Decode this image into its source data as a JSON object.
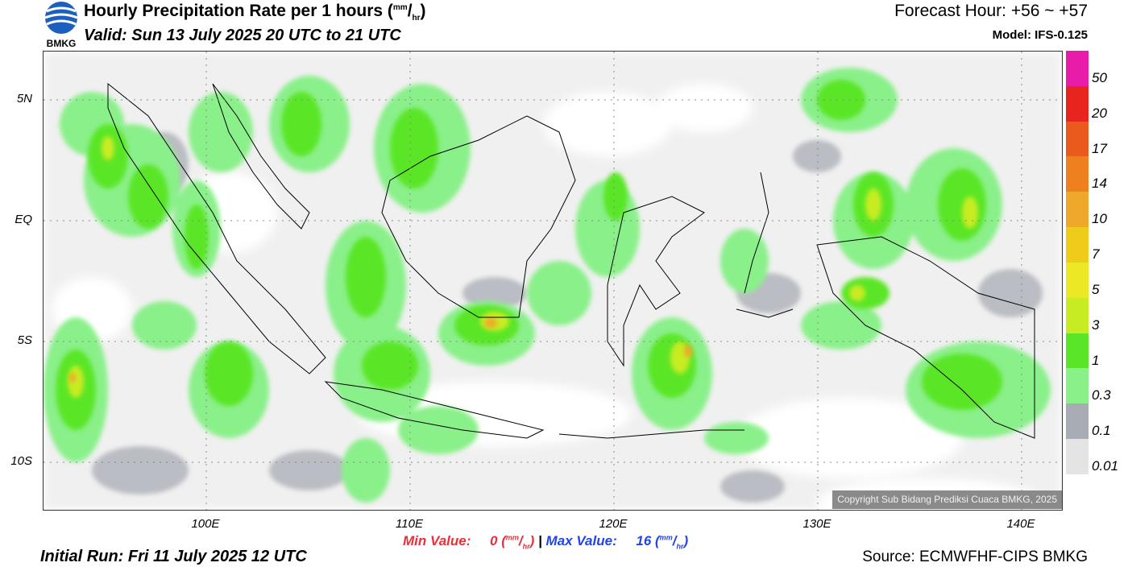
{
  "header": {
    "logo_text": "BMKG",
    "title_main": "Hourly Precipitation Rate per 1 hours (",
    "title_unit_top": "mm",
    "title_unit_sep": "/",
    "title_unit_bottom": "hr",
    "title_close": ")",
    "valid": "Valid: Sun 13 July 2025 20 UTC to 21 UTC",
    "forecast_hour": "Forecast Hour: +56 ~ +57",
    "model": "Model: IFS-0.125"
  },
  "map": {
    "lat_labels": [
      "5N",
      "EQ",
      "5S",
      "10S"
    ],
    "lon_labels": [
      "100E",
      "110E",
      "120E",
      "130E",
      "140E"
    ],
    "copyright": "Copyright Sub Bidang Prediksi Cuaca BMKG, 2025"
  },
  "legend": {
    "labels": [
      "50",
      "20",
      "17",
      "14",
      "10",
      "7",
      "5",
      "3",
      "1",
      "0.3",
      "0.1",
      "0.01"
    ],
    "colors": [
      "#e81ca8",
      "#e8241e",
      "#ea5a1c",
      "#ee8020",
      "#efa82a",
      "#f0cc1a",
      "#ece826",
      "#c8ec24",
      "#5ae628",
      "#8af08a",
      "#a8acb4",
      "#e4e4e4"
    ]
  },
  "footer": {
    "min_label": "Min Value:",
    "min_value": "0",
    "separator": "|",
    "max_label": "Max Value:",
    "max_value": "16",
    "unit_top": "mm",
    "unit_sep": "/",
    "unit_bottom": "hr",
    "initial_run": "Initial Run: Fri 11 July 2025 12 UTC",
    "source": "Source: ECMWFHF-CIPS BMKG"
  }
}
